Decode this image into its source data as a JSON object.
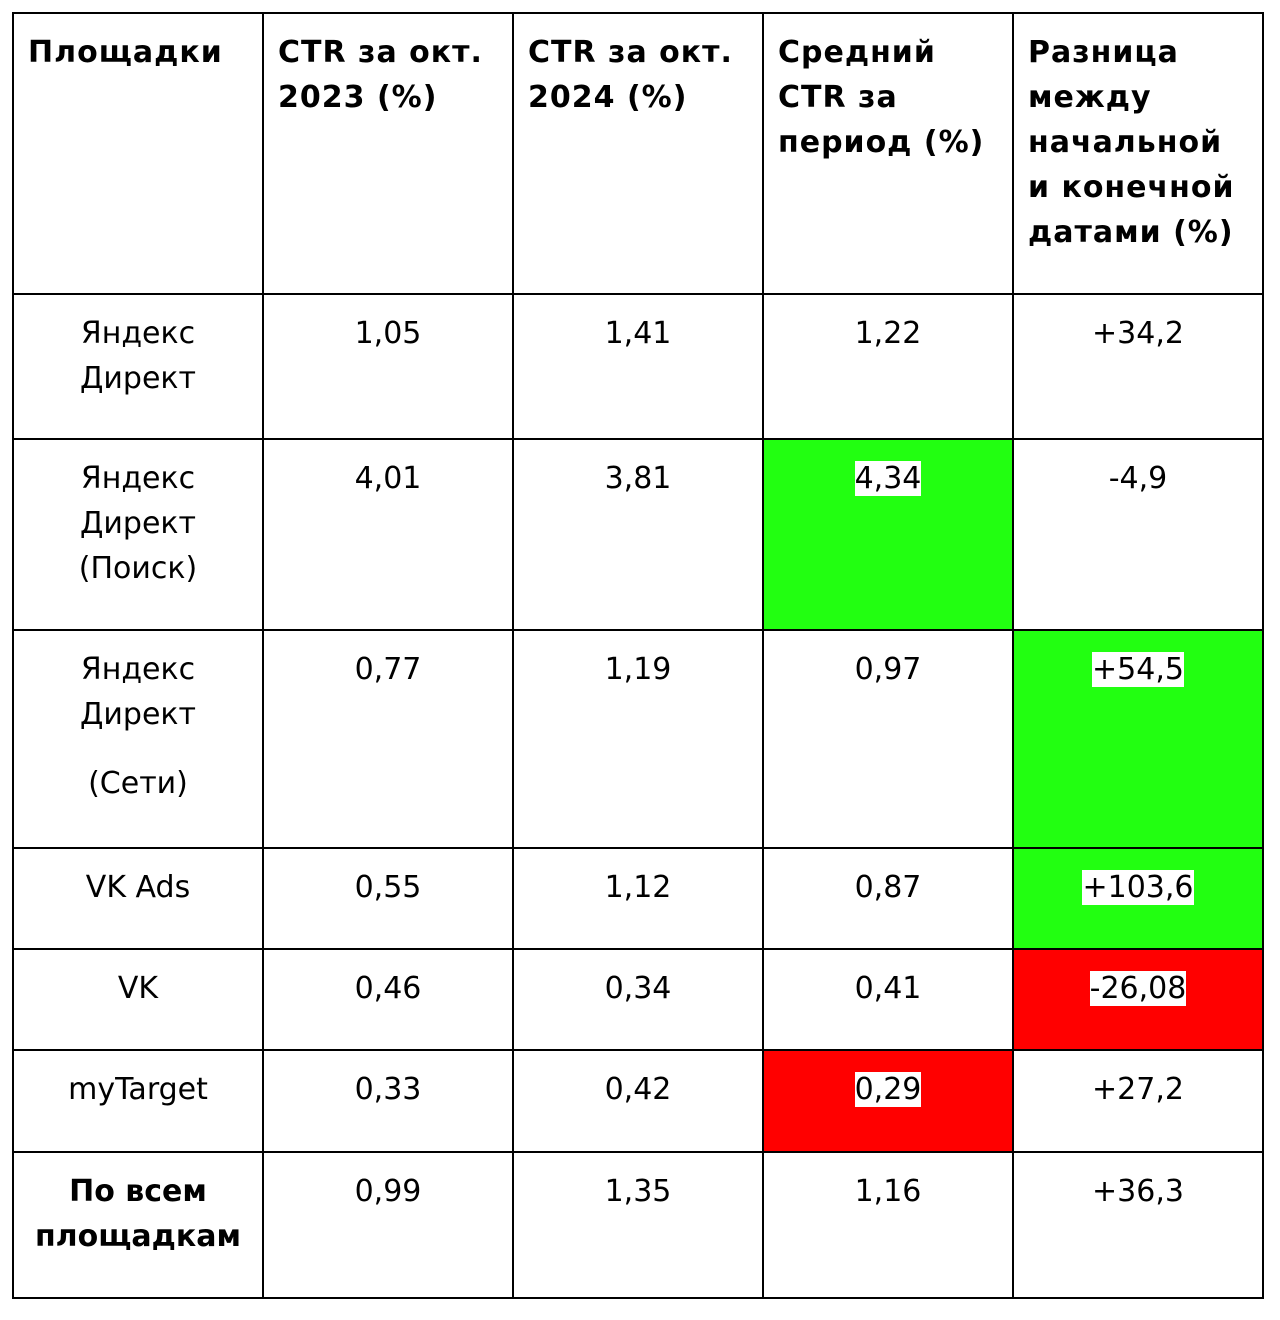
{
  "headers": [
    "Площадки",
    "CTR за окт. 2023 (%)",
    "CTR за окт. 2024 (%)",
    "Средний CTR за период (%)",
    "Разница между начальной и конечной датами (%)"
  ],
  "rows": [
    {
      "platform_lines": [
        "Яндекс",
        "Директ"
      ],
      "ctr_2023": "1,05",
      "ctr_2024": "1,41",
      "avg_ctr": "1,22",
      "diff": "+34,2"
    },
    {
      "platform_lines": [
        "Яндекс",
        "Директ",
        "(Поиск)"
      ],
      "ctr_2023": "4,01",
      "ctr_2024": "3,81",
      "avg_ctr": "4,34",
      "diff": "-4,9"
    },
    {
      "platform_lines": [
        "Яндекс",
        "Директ",
        "(Сети)"
      ],
      "ctr_2023": "0,77",
      "ctr_2024": "1,19",
      "avg_ctr": "0,97",
      "diff": "+54,5"
    },
    {
      "platform_lines": [
        "VK Ads"
      ],
      "ctr_2023": "0,55",
      "ctr_2024": "1,12",
      "avg_ctr": "0,87",
      "diff": "+103,6"
    },
    {
      "platform_lines": [
        "VK"
      ],
      "ctr_2023": "0,46",
      "ctr_2024": "0,34",
      "avg_ctr": "0,41",
      "diff": "-26,08"
    },
    {
      "platform_lines": [
        "myTarget"
      ],
      "ctr_2023": "0,33",
      "ctr_2024": "0,42",
      "avg_ctr": "0,29",
      "diff": "+27,2"
    },
    {
      "platform_lines": [
        "По всем",
        "площадкам"
      ],
      "ctr_2023": "0,99",
      "ctr_2024": "1,35",
      "avg_ctr": "1,16",
      "diff": "+36,3"
    }
  ],
  "highlight_colors": {
    "green": "#22ff11",
    "red": "#ff0000"
  }
}
